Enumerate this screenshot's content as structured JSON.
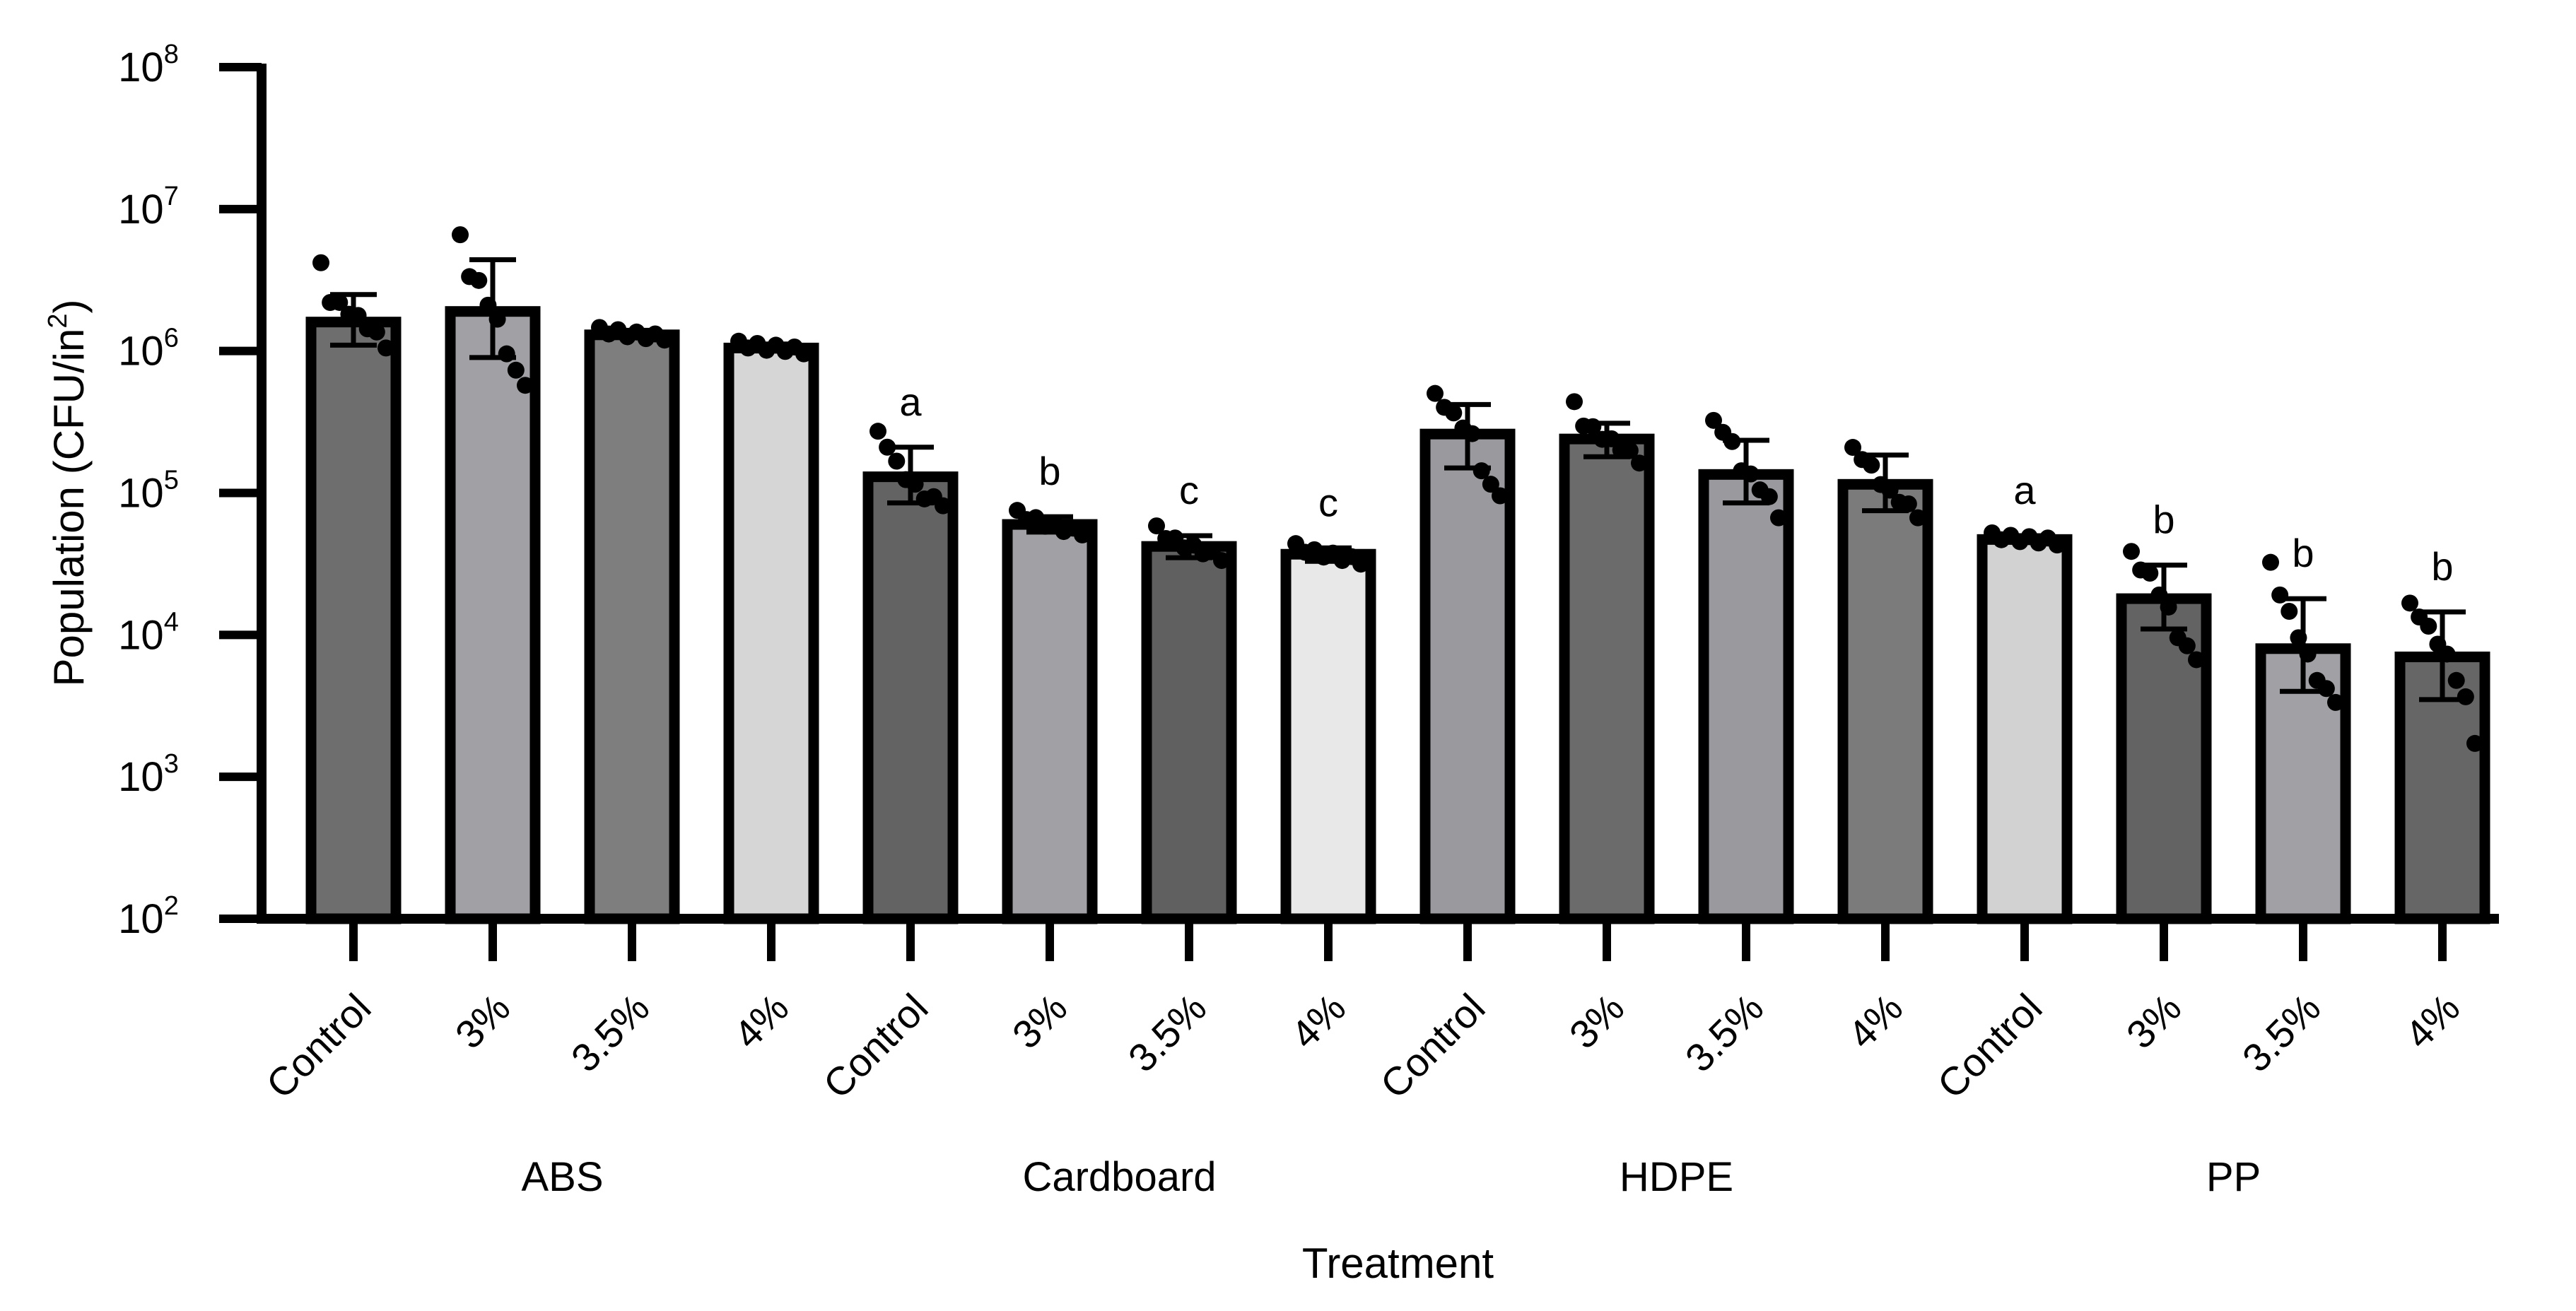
{
  "chart_data": {
    "type": "bar",
    "scale": "log",
    "title": "",
    "xlabel": "Treatment",
    "ylabel": "Population (CFU/in",
    "ylabel_superscript": "2",
    "ylabel_suffix": ")",
    "ylim_log10": [
      2,
      8
    ],
    "ytick_base": "10",
    "ytick_exponents": [
      "2",
      "3",
      "4",
      "5",
      "6",
      "7",
      "8"
    ],
    "groups": [
      "ABS",
      "Cardboard",
      "HDPE",
      "PP"
    ],
    "bars": [
      {
        "group": "ABS",
        "label": "Control",
        "mean": 1600000,
        "err_low": 1100000,
        "err_high": 2500000,
        "color": "#6e6e6e",
        "points": [
          4000000,
          2300000,
          2100000,
          1900000,
          1700000,
          1500000,
          1300000,
          1100000
        ],
        "sig": ""
      },
      {
        "group": "ABS",
        "label": "3%",
        "mean": 1900000,
        "err_low": 900000,
        "err_high": 4400000,
        "color": "#a1a1a5",
        "points": [
          6300000,
          3500000,
          3000000,
          2200000,
          1600000,
          1000000,
          700000,
          600000
        ],
        "sig": ""
      },
      {
        "group": "ABS",
        "label": "3.5%",
        "mean": 1300000,
        "err_low": 1250000,
        "err_high": 1400000,
        "color": "#7e7e7e",
        "points": [
          1400000,
          1380000,
          1350000,
          1320000,
          1300000,
          1280000,
          1260000,
          1250000
        ],
        "sig": ""
      },
      {
        "group": "ABS",
        "label": "4%",
        "mean": 1050000,
        "err_low": 1000000,
        "err_high": 1120000,
        "color": "#d6d6d6",
        "points": [
          1120000,
          1100000,
          1080000,
          1060000,
          1050000,
          1040000,
          1020000,
          1000000
        ],
        "sig": ""
      },
      {
        "group": "Cardboard",
        "label": "Control",
        "mean": 130000,
        "err_low": 85000,
        "err_high": 210000,
        "color": "#636363",
        "points": [
          260000,
          220000,
          160000,
          130000,
          110000,
          95000,
          90000,
          85000
        ],
        "sig": "a"
      },
      {
        "group": "Cardboard",
        "label": "3%",
        "mean": 60000,
        "err_low": 53000,
        "err_high": 68000,
        "color": "#a1a1a5",
        "points": [
          72000,
          68000,
          64000,
          61000,
          58000,
          56000,
          54000,
          53000
        ],
        "sig": "b"
      },
      {
        "group": "Cardboard",
        "label": "3.5%",
        "mean": 42000,
        "err_low": 35000,
        "err_high": 50000,
        "color": "#606060",
        "points": [
          56000,
          50000,
          46000,
          43000,
          41000,
          39000,
          37000,
          35000
        ],
        "sig": "c"
      },
      {
        "group": "Cardboard",
        "label": "4%",
        "mean": 37000,
        "err_low": 33000,
        "err_high": 41000,
        "color": "#e8e8e8",
        "points": [
          42000,
          40000,
          38000,
          37000,
          36000,
          35000,
          34000,
          33000
        ],
        "sig": "c"
      },
      {
        "group": "HDPE",
        "label": "Control",
        "mean": 260000,
        "err_low": 150000,
        "err_high": 420000,
        "color": "#9a9a9e",
        "points": [
          480000,
          420000,
          350000,
          300000,
          250000,
          150000,
          110000,
          100000
        ],
        "sig": ""
      },
      {
        "group": "HDPE",
        "label": "3%",
        "mean": 240000,
        "err_low": 180000,
        "err_high": 310000,
        "color": "#6b6b6b",
        "points": [
          420000,
          310000,
          280000,
          250000,
          230000,
          210000,
          190000,
          170000
        ],
        "sig": ""
      },
      {
        "group": "HDPE",
        "label": "3.5%",
        "mean": 135000,
        "err_low": 85000,
        "err_high": 235000,
        "color": "#9a9a9e",
        "points": [
          310000,
          280000,
          220000,
          150000,
          130000,
          110000,
          90000,
          70000
        ],
        "sig": ""
      },
      {
        "group": "HDPE",
        "label": "4%",
        "mean": 115000,
        "err_low": 75000,
        "err_high": 185000,
        "color": "#7b7b7b",
        "points": [
          200000,
          180000,
          150000,
          120000,
          100000,
          90000,
          80000,
          70000
        ],
        "sig": ""
      },
      {
        "group": "PP",
        "label": "Control",
        "mean": 47000,
        "err_low": 45000,
        "err_high": 50000,
        "color": "#d2d2d2",
        "points": [
          50000,
          49000,
          48000,
          47500,
          47000,
          46500,
          46000,
          45000
        ],
        "sig": "a"
      },
      {
        "group": "PP",
        "label": "3%",
        "mean": 18000,
        "err_low": 11000,
        "err_high": 31000,
        "color": "#636363",
        "points": [
          37000,
          30000,
          26000,
          20000,
          15000,
          10000,
          8000,
          7000
        ],
        "sig": "b"
      },
      {
        "group": "PP",
        "label": "3.5%",
        "mean": 8000,
        "err_low": 4000,
        "err_high": 18000,
        "color": "#a1a1a5",
        "points": [
          31000,
          20000,
          14000,
          10000,
          7000,
          5000,
          4000,
          3500
        ],
        "sig": "b"
      },
      {
        "group": "PP",
        "label": "4%",
        "mean": 7000,
        "err_low": 3500,
        "err_high": 14500,
        "color": "#666666",
        "points": [
          16000,
          14000,
          11000,
          9000,
          7000,
          5000,
          3500,
          1800
        ],
        "sig": "b"
      }
    ]
  }
}
